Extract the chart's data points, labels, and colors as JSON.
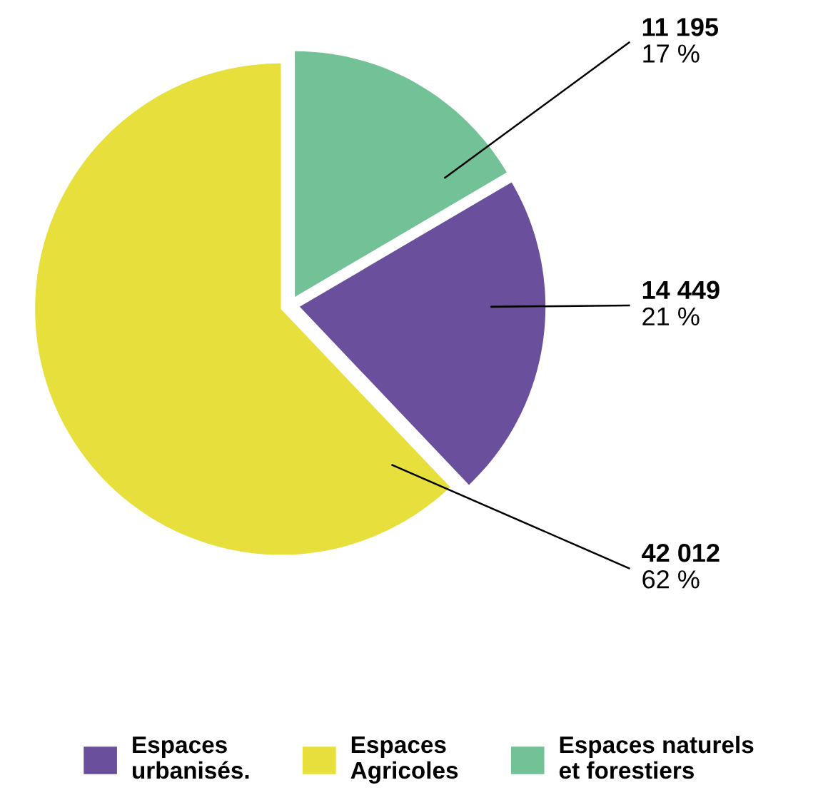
{
  "chart_data": {
    "type": "pie",
    "categories": [
      "Espaces urbanisés.",
      "Espaces Agricoles",
      "Espaces naturels et forestiers"
    ],
    "values": [
      14449,
      42012,
      11195
    ],
    "colors": [
      "#6a509c",
      "#e6df3c",
      "#72c197"
    ],
    "value_labels": [
      "14 449\n21 %",
      "42 012\n62 %",
      "11 195\n17 %"
    ],
    "legend": "bottom"
  }
}
